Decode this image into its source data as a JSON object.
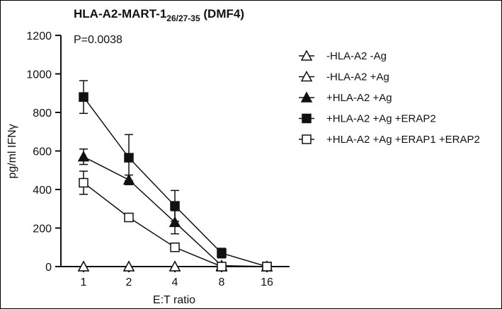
{
  "chart_data": {
    "type": "line",
    "title": {
      "main": "HLA-A2-MART-1",
      "subscript": "26/27-35",
      "suffix": " (DMF4)"
    },
    "annotation": "P=0.0038",
    "xlabel": "E:T ratio",
    "ylabel": "pg/ml IFNγ",
    "ylim": [
      0,
      1200
    ],
    "yticks": [
      "0",
      "200",
      "400",
      "600",
      "800",
      "1000",
      "1200"
    ],
    "categories": [
      "1",
      "2",
      "4",
      "8",
      "16"
    ],
    "legend_position": "right",
    "series": [
      {
        "name": "-HLA-A2 -Ag",
        "marker": "triangle",
        "filled": false,
        "values": [
          0,
          0,
          0,
          0,
          0
        ],
        "errors": [
          0,
          0,
          0,
          0,
          0
        ]
      },
      {
        "name": "-HLA-A2 +Ag",
        "marker": "triangle",
        "filled": false,
        "values": [
          0,
          0,
          0,
          0,
          0
        ],
        "errors": [
          0,
          0,
          0,
          0,
          0
        ]
      },
      {
        "name": "+HLA-A2 +Ag",
        "marker": "triangle",
        "filled": true,
        "values": [
          570,
          450,
          230,
          5,
          0
        ],
        "errors": [
          40,
          25,
          60,
          5,
          0
        ]
      },
      {
        "name": "+HLA-A2 +Ag +ERAP2",
        "marker": "square",
        "filled": true,
        "values": [
          880,
          565,
          315,
          70,
          0
        ],
        "errors": [
          85,
          120,
          80,
          25,
          0
        ]
      },
      {
        "name": "+HLA-A2 +Ag +ERAP1 +ERAP2",
        "marker": "square",
        "filled": false,
        "values": [
          435,
          255,
          100,
          0,
          0
        ],
        "errors": [
          60,
          0,
          0,
          0,
          0
        ]
      }
    ]
  }
}
